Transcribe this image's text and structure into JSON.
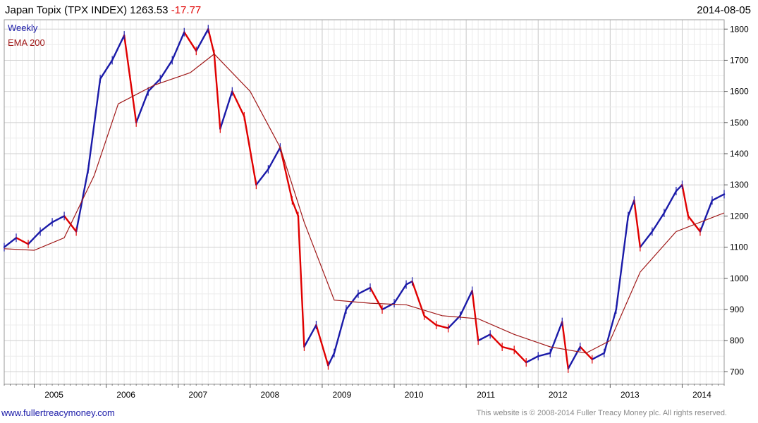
{
  "header": {
    "title": "Japan Topix (TPX INDEX)",
    "last": "1263.53",
    "change": "-17.77",
    "date": "2014-08-05"
  },
  "legend": {
    "weekly": "Weekly",
    "ema": "EMA 200"
  },
  "footer": {
    "site": "www.fullertreacymoney.com",
    "copyright": "This website is © 2008-2014 Fuller Treacy Money plc. All rights reserved."
  },
  "colors": {
    "up": "#1a1aa8",
    "down": "#e00000",
    "ema": "#a01818",
    "grid": "#d9d9d9"
  },
  "chart_data": {
    "type": "line",
    "series": [
      {
        "name": "Weekly",
        "x": [
          "2004-08",
          "2004-10",
          "2004-12",
          "2005-02",
          "2005-04",
          "2005-06",
          "2005-08",
          "2005-10",
          "2005-12",
          "2006-02",
          "2006-04",
          "2006-05",
          "2006-06",
          "2006-08",
          "2006-10",
          "2006-12",
          "2007-02",
          "2007-04",
          "2007-06",
          "2007-07",
          "2007-08",
          "2007-10",
          "2007-12",
          "2008-02",
          "2008-04",
          "2008-06",
          "2008-08",
          "2008-09",
          "2008-10",
          "2008-12",
          "2009-02",
          "2009-03",
          "2009-05",
          "2009-07",
          "2009-09",
          "2009-11",
          "2010-01",
          "2010-03",
          "2010-04",
          "2010-06",
          "2010-08",
          "2010-10",
          "2010-12",
          "2011-02",
          "2011-03",
          "2011-05",
          "2011-07",
          "2011-09",
          "2011-11",
          "2012-01",
          "2012-03",
          "2012-05",
          "2012-06",
          "2012-08",
          "2012-10",
          "2012-12",
          "2013-02",
          "2013-04",
          "2013-05",
          "2013-06",
          "2013-08",
          "2013-10",
          "2013-12",
          "2014-01",
          "2014-02",
          "2014-04",
          "2014-06",
          "2014-08"
        ],
        "values": [
          1100,
          1130,
          1110,
          1150,
          1180,
          1200,
          1150,
          1350,
          1640,
          1700,
          1780,
          1640,
          1500,
          1600,
          1640,
          1700,
          1790,
          1730,
          1800,
          1720,
          1480,
          1600,
          1520,
          1300,
          1350,
          1420,
          1250,
          1200,
          780,
          850,
          720,
          760,
          900,
          950,
          970,
          900,
          920,
          980,
          990,
          880,
          850,
          840,
          880,
          960,
          800,
          820,
          780,
          770,
          730,
          750,
          760,
          860,
          710,
          780,
          740,
          760,
          900,
          1200,
          1250,
          1100,
          1150,
          1210,
          1280,
          1300,
          1200,
          1150,
          1250,
          1270
        ]
      },
      {
        "name": "EMA 200",
        "x": [
          "2004-08",
          "2005-01",
          "2005-06",
          "2005-11",
          "2006-03",
          "2006-09",
          "2007-03",
          "2007-07",
          "2008-01",
          "2008-06",
          "2008-10",
          "2009-03",
          "2009-09",
          "2010-03",
          "2010-09",
          "2011-03",
          "2011-09",
          "2012-03",
          "2012-09",
          "2013-01",
          "2013-06",
          "2013-12",
          "2014-08"
        ],
        "values": [
          1095,
          1090,
          1130,
          1330,
          1560,
          1620,
          1660,
          1720,
          1600,
          1420,
          1180,
          930,
          920,
          915,
          880,
          870,
          820,
          780,
          760,
          800,
          1020,
          1150,
          1210
        ]
      }
    ],
    "y_ticks": [
      700,
      800,
      900,
      1000,
      1100,
      1200,
      1300,
      1400,
      1500,
      1600,
      1700,
      1800
    ],
    "x_ticks": [
      "2005",
      "2006",
      "2007",
      "2008",
      "2009",
      "2010",
      "2011",
      "2012",
      "2013",
      "2014"
    ],
    "ylim": [
      660,
      1830
    ],
    "xlim": [
      "2004-08",
      "2014-08"
    ],
    "grid": true,
    "legend_position": "top-left"
  }
}
